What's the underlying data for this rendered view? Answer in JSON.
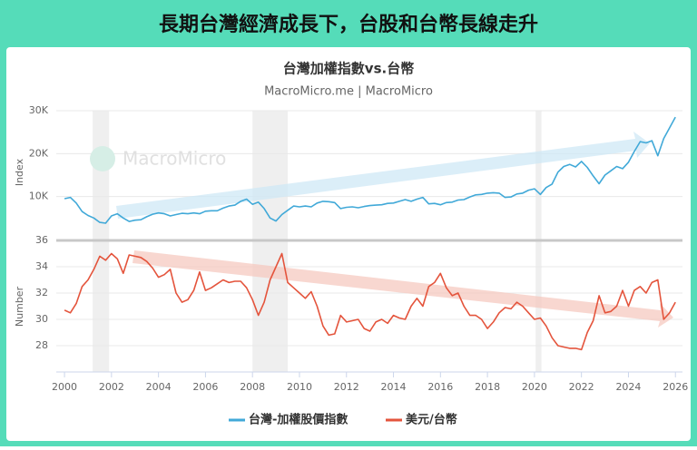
{
  "page": {
    "banner": "長期台灣經濟成長下，台股和台幣長線走升",
    "title": "台灣加權指數vs.台幣",
    "subtitle": "MacroMicro.me | MacroMicro",
    "watermark": "MacroMicro"
  },
  "chart_data": [
    {
      "type": "line",
      "ylabel": "Index",
      "xlim": [
        1999.65,
        2026.3
      ],
      "ylim": [
        0,
        30000
      ],
      "yticks": [
        {
          "value": 10000,
          "label": "10K"
        },
        {
          "value": 20000,
          "label": "20K"
        },
        {
          "value": 30000,
          "label": "30K"
        }
      ],
      "grid": true,
      "shaded": [
        [
          2001.2,
          2001.9
        ],
        [
          2008.0,
          2009.5
        ],
        [
          2020.05,
          2020.3
        ]
      ],
      "x": [
        2000,
        2000.25,
        2000.5,
        2000.75,
        2001,
        2001.25,
        2001.5,
        2001.75,
        2002,
        2002.25,
        2002.5,
        2002.75,
        2003,
        2003.25,
        2003.5,
        2003.75,
        2004,
        2004.25,
        2004.5,
        2004.75,
        2005,
        2005.25,
        2005.5,
        2005.75,
        2006,
        2006.25,
        2006.5,
        2006.75,
        2007,
        2007.25,
        2007.5,
        2007.75,
        2008,
        2008.25,
        2008.5,
        2008.75,
        2009,
        2009.25,
        2009.5,
        2009.75,
        2010,
        2010.25,
        2010.5,
        2010.75,
        2011,
        2011.25,
        2011.5,
        2011.75,
        2012,
        2012.25,
        2012.5,
        2012.75,
        2013,
        2013.25,
        2013.5,
        2013.75,
        2014,
        2014.25,
        2014.5,
        2014.75,
        2015,
        2015.25,
        2015.5,
        2015.75,
        2016,
        2016.25,
        2016.5,
        2016.75,
        2017,
        2017.25,
        2017.5,
        2017.75,
        2018,
        2018.25,
        2018.5,
        2018.75,
        2019,
        2019.25,
        2019.5,
        2019.75,
        2020,
        2020.25,
        2020.5,
        2020.75,
        2021,
        2021.25,
        2021.5,
        2021.75,
        2022,
        2022.25,
        2022.5,
        2022.75,
        2023,
        2023.25,
        2023.5,
        2023.75,
        2024,
        2024.25,
        2024.5,
        2024.75,
        2025,
        2025.25,
        2025.5,
        2025.75,
        2026
      ],
      "series": [
        {
          "name": "台灣-加權股價指數",
          "color": "#41a9d8",
          "values": [
            9500,
            9800,
            8500,
            6500,
            5600,
            5000,
            4000,
            3800,
            5500,
            6000,
            5000,
            4200,
            4500,
            4600,
            5300,
            5900,
            6200,
            6000,
            5500,
            5800,
            6100,
            6000,
            6200,
            6000,
            6600,
            6700,
            6700,
            7300,
            7800,
            8000,
            8900,
            9400,
            8200,
            8700,
            7200,
            5000,
            4300,
            5800,
            6800,
            7800,
            7600,
            7800,
            7600,
            8500,
            8900,
            8800,
            8600,
            7200,
            7500,
            7600,
            7400,
            7700,
            7900,
            8000,
            8100,
            8400,
            8500,
            8900,
            9300,
            8900,
            9400,
            9800,
            8300,
            8400,
            8100,
            8600,
            8700,
            9200,
            9300,
            9900,
            10400,
            10500,
            10800,
            10900,
            10800,
            9800,
            9900,
            10600,
            10800,
            11500,
            11800,
            10500,
            12100,
            12900,
            15700,
            17000,
            17500,
            16900,
            18200,
            16800,
            14800,
            13000,
            15000,
            16000,
            17000,
            16500,
            18000,
            20500,
            22800,
            22500,
            23000,
            19500,
            23500,
            26000,
            28500
          ]
        }
      ]
    },
    {
      "type": "line",
      "ylabel": "Number",
      "xlim": [
        1999.65,
        2026.3
      ],
      "ylim": [
        26,
        36
      ],
      "yticks": [
        28,
        30,
        32,
        34,
        36
      ],
      "xticks": [
        2000,
        2002,
        2004,
        2006,
        2008,
        2010,
        2012,
        2014,
        2016,
        2018,
        2020,
        2022,
        2024,
        2026
      ],
      "grid": true,
      "x": [
        2000,
        2000.25,
        2000.5,
        2000.75,
        2001,
        2001.25,
        2001.5,
        2001.75,
        2002,
        2002.25,
        2002.5,
        2002.75,
        2003,
        2003.25,
        2003.5,
        2003.75,
        2004,
        2004.25,
        2004.5,
        2004.75,
        2005,
        2005.25,
        2005.5,
        2005.75,
        2006,
        2006.25,
        2006.5,
        2006.75,
        2007,
        2007.25,
        2007.5,
        2007.75,
        2008,
        2008.25,
        2008.5,
        2008.75,
        2009,
        2009.25,
        2009.5,
        2009.75,
        2010,
        2010.25,
        2010.5,
        2010.75,
        2011,
        2011.25,
        2011.5,
        2011.75,
        2012,
        2012.25,
        2012.5,
        2012.75,
        2013,
        2013.25,
        2013.5,
        2013.75,
        2014,
        2014.25,
        2014.5,
        2014.75,
        2015,
        2015.25,
        2015.5,
        2015.75,
        2016,
        2016.25,
        2016.5,
        2016.75,
        2017,
        2017.25,
        2017.5,
        2017.75,
        2018,
        2018.25,
        2018.5,
        2018.75,
        2019,
        2019.25,
        2019.5,
        2019.75,
        2020,
        2020.25,
        2020.5,
        2020.75,
        2021,
        2021.25,
        2021.5,
        2021.75,
        2022,
        2022.25,
        2022.5,
        2022.75,
        2023,
        2023.25,
        2023.5,
        2023.75,
        2024,
        2024.25,
        2024.5,
        2024.75,
        2025,
        2025.25,
        2025.5,
        2025.75,
        2026
      ],
      "series": [
        {
          "name": "美元/台幣",
          "color": "#e4543c",
          "values": [
            30.7,
            30.5,
            31.2,
            32.5,
            33.0,
            33.8,
            34.8,
            34.5,
            35.0,
            34.6,
            33.5,
            34.9,
            34.8,
            34.7,
            34.4,
            33.9,
            33.2,
            33.4,
            33.8,
            32.0,
            31.3,
            31.5,
            32.2,
            33.6,
            32.2,
            32.4,
            32.7,
            33.0,
            32.8,
            32.9,
            32.9,
            32.4,
            31.5,
            30.3,
            31.3,
            33.0,
            34.0,
            35.0,
            32.8,
            32.4,
            32.0,
            31.6,
            32.1,
            31.0,
            29.5,
            28.8,
            28.9,
            30.3,
            29.8,
            29.9,
            30.0,
            29.3,
            29.1,
            29.8,
            30.0,
            29.7,
            30.3,
            30.1,
            30.0,
            31.0,
            31.6,
            31.0,
            32.5,
            32.8,
            33.5,
            32.4,
            31.8,
            32.0,
            31.0,
            30.3,
            30.3,
            30.0,
            29.3,
            29.8,
            30.5,
            30.9,
            30.8,
            31.3,
            31.0,
            30.5,
            30.0,
            30.1,
            29.5,
            28.6,
            28.0,
            27.9,
            27.8,
            27.8,
            27.7,
            29.0,
            29.9,
            31.8,
            30.5,
            30.6,
            31.0,
            32.2,
            31.0,
            32.2,
            32.5,
            32.0,
            32.8,
            33.0,
            30.0,
            30.5,
            31.3
          ]
        }
      ]
    }
  ]
}
